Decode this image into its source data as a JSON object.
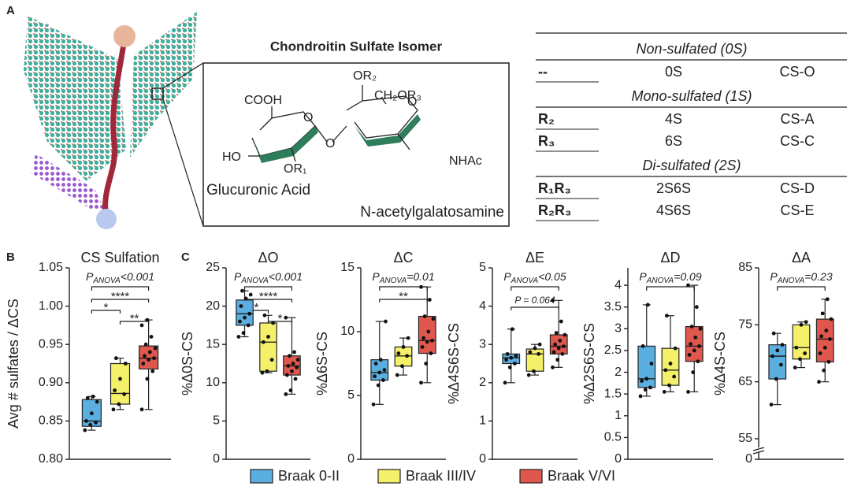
{
  "panel_labels": [
    "A",
    "B",
    "C"
  ],
  "structure": {
    "title": "Chondroitin Sulfate Isomer",
    "labels": {
      "or2": "OR₂",
      "ch2or3": "CH₂OR₃",
      "cooh": "COOH",
      "o1": "O",
      "o2": "O",
      "o3": "O",
      "ho": "HO",
      "or1": "OR₁",
      "nhac": "NHAc",
      "glc": "Glucuronic Acid",
      "galnac": "N-acetylgalatosamine"
    }
  },
  "table": {
    "sections": [
      {
        "header": "Non-sulfated (0S)",
        "rows": [
          {
            "cells": [
              "--",
              "0S",
              "CS-O"
            ],
            "color": "#3a8fb7"
          }
        ]
      },
      {
        "header": "Mono-sulfated (1S)",
        "rows": [
          {
            "cells": [
              "R₂",
              "4S",
              "CS-A"
            ],
            "color": "#1f4e8c"
          },
          {
            "cells": [
              "R₃",
              "6S",
              "CS-C"
            ],
            "color": "#d9822b"
          }
        ]
      },
      {
        "header": "Di-sulfated (2S)",
        "rows": [
          {
            "cells": [
              "R₁R₃",
              "2S6S",
              "CS-D"
            ],
            "color": "#3d6b2f"
          },
          {
            "cells": [
              "R₂R₃",
              "4S6S",
              "CS-E"
            ],
            "color": "#c0204a"
          }
        ]
      }
    ]
  },
  "chart_data": [
    {
      "type": "box",
      "title": "CS Sulfation",
      "title_color": "#222222",
      "ylabel": "Avg # sulfates / ΔCS",
      "ylim": [
        0.8,
        1.05
      ],
      "yticks": [
        {
          "value": 0.8,
          "label": "0.80"
        },
        0.85,
        {
          "value": 0.9,
          "label": "0.90"
        },
        0.95,
        {
          "value": 1.0,
          "label": "1.00"
        },
        1.05
      ],
      "anova": {
        "symbol": "P",
        "subscript": "ANOVA",
        "text": "<0.001"
      },
      "comparisons": [
        {
          "pair": [
            "Braak 0-II",
            "Braak V/VI"
          ],
          "label": "****"
        },
        {
          "pair": [
            "Braak 0-II",
            "Braak III/IV"
          ],
          "label": "*"
        },
        {
          "pair": [
            "Braak III/IV",
            "Braak V/VI"
          ],
          "label": "**"
        }
      ],
      "series": [
        {
          "name": "Braak 0-II",
          "color": "#5aaee0",
          "min": 0.838,
          "q1": 0.843,
          "median": 0.85,
          "q3": 0.878,
          "max": 0.882,
          "points": [
            0.838,
            0.845,
            0.848,
            0.85,
            0.86,
            0.875,
            0.88,
            0.882
          ]
        },
        {
          "name": "Braak III/IV",
          "color": "#f5f06a",
          "min": 0.865,
          "q1": 0.872,
          "median": 0.886,
          "q3": 0.925,
          "max": 0.932,
          "points": [
            0.865,
            0.872,
            0.885,
            0.89,
            0.905,
            0.925,
            0.932
          ]
        },
        {
          "name": "Braak V/VI",
          "color": "#e0574e",
          "min": 0.865,
          "q1": 0.918,
          "median": 0.932,
          "q3": 0.948,
          "max": 0.982,
          "points": [
            0.865,
            0.905,
            0.915,
            0.925,
            0.93,
            0.932,
            0.935,
            0.94,
            0.945,
            0.95,
            0.96,
            0.975,
            0.982
          ]
        }
      ]
    },
    {
      "type": "box",
      "title": "ΔO",
      "title_color": "#3a8fb7",
      "ylabel": "%Δ0S-CS",
      "ylim": [
        0,
        25
      ],
      "yticks": [
        0,
        5,
        10,
        15,
        20,
        25
      ],
      "anova": {
        "symbol": "P",
        "subscript": "ANOVA",
        "text": "<0.001"
      },
      "comparisons": [
        {
          "pair": [
            "Braak 0-II",
            "Braak V/VI"
          ],
          "label": "****"
        },
        {
          "pair": [
            "Braak 0-II",
            "Braak III/IV"
          ],
          "label": "*"
        },
        {
          "pair": [
            "Braak III/IV",
            "Braak V/VI"
          ],
          "label": "*"
        }
      ],
      "series": [
        {
          "name": "Braak 0-II",
          "color": "#5aaee0",
          "min": 16,
          "q1": 17.5,
          "median": 19,
          "q3": 20.8,
          "max": 22,
          "points": [
            16,
            16.5,
            17.5,
            18,
            18.5,
            19,
            20,
            21,
            21.5,
            22
          ]
        },
        {
          "name": "Braak III/IV",
          "color": "#f5f06a",
          "min": 11.3,
          "q1": 11.5,
          "median": 15.3,
          "q3": 17.8,
          "max": 18.8,
          "points": [
            11.3,
            11.5,
            13,
            15.3,
            16,
            17.8,
            18.8
          ]
        },
        {
          "name": "Braak V/VI",
          "color": "#e0574e",
          "min": 8.5,
          "q1": 11,
          "median": 12.2,
          "q3": 13.5,
          "max": 18.5,
          "points": [
            8.5,
            9,
            10.5,
            11,
            11.5,
            12,
            12.2,
            12.5,
            13,
            13.5,
            14,
            18.5
          ]
        }
      ]
    },
    {
      "type": "box",
      "title": "ΔC",
      "title_color": "#d9822b",
      "ylabel": "%Δ6S-CS",
      "ylim": [
        0,
        15
      ],
      "yticks": [
        0,
        5,
        10,
        15
      ],
      "anova": {
        "symbol": "P",
        "subscript": "ANOVA",
        "text": "=0.01"
      },
      "comparisons": [
        {
          "pair": [
            "Braak 0-II",
            "Braak V/VI"
          ],
          "label": "**"
        }
      ],
      "series": [
        {
          "name": "Braak 0-II",
          "color": "#5aaee0",
          "min": 4.3,
          "q1": 6.2,
          "median": 6.8,
          "q3": 7.8,
          "max": 10.8,
          "points": [
            4.3,
            5.8,
            6.2,
            6.5,
            6.8,
            7,
            7.5,
            7.8,
            10.8
          ]
        },
        {
          "name": "Braak III/IV",
          "color": "#f5f06a",
          "min": 6.6,
          "q1": 7.3,
          "median": 8.1,
          "q3": 8.8,
          "max": 9.5,
          "points": [
            6.6,
            7.3,
            8.1,
            8.3,
            8.8,
            9.5
          ]
        },
        {
          "name": "Braak V/VI",
          "color": "#e0574e",
          "min": 6,
          "q1": 8.3,
          "median": 9.3,
          "q3": 11.2,
          "max": 13.5,
          "points": [
            6,
            7.5,
            8.3,
            8.8,
            9.2,
            9.3,
            9.5,
            10,
            11,
            11.2,
            12.5,
            13.5
          ]
        }
      ]
    },
    {
      "type": "box",
      "title": "ΔE",
      "title_color": "#c0204a",
      "ylabel": "%Δ4S6S-CS",
      "ylim": [
        0,
        5
      ],
      "yticks": [
        0,
        1,
        2,
        3,
        4,
        5
      ],
      "anova": {
        "symbol": "P",
        "subscript": "ANOVA",
        "text": "<0.05"
      },
      "comparisons": [
        {
          "pair": [
            "Braak 0-II",
            "Braak V/VI"
          ],
          "label": "P = 0.064"
        }
      ],
      "series": [
        {
          "name": "Braak 0-II",
          "color": "#5aaee0",
          "min": 2,
          "q1": 2.5,
          "median": 2.65,
          "q3": 2.75,
          "max": 3.4,
          "points": [
            2,
            2.4,
            2.5,
            2.6,
            2.65,
            2.7,
            2.75,
            3.4
          ]
        },
        {
          "name": "Braak III/IV",
          "color": "#f5f06a",
          "min": 2.2,
          "q1": 2.3,
          "median": 2.75,
          "q3": 2.88,
          "max": 3.0,
          "points": [
            2.2,
            2.3,
            2.75,
            2.8,
            2.9,
            3.0
          ]
        },
        {
          "name": "Braak V/VI",
          "color": "#e0574e",
          "min": 2.4,
          "q1": 2.75,
          "median": 2.95,
          "q3": 3.25,
          "max": 4.15,
          "points": [
            2.4,
            2.6,
            2.75,
            2.8,
            2.9,
            2.95,
            3.0,
            3.1,
            3.25,
            3.3,
            3.6,
            4.15
          ]
        }
      ]
    },
    {
      "type": "box",
      "title": "ΔD",
      "title_color": "#3d6b2f",
      "ylabel": "%Δ2S6S-CS",
      "ylim": [
        0,
        4.4
      ],
      "yticks": [
        0,
        0.5,
        1,
        1.5,
        2,
        2.5,
        3,
        3.5,
        4
      ],
      "anova": {
        "symbol": "P",
        "subscript": "ANOVA",
        "text": "=0.09"
      },
      "comparisons": [],
      "series": [
        {
          "name": "Braak 0-II",
          "color": "#5aaee0",
          "min": 1.45,
          "q1": 1.65,
          "median": 1.85,
          "q3": 2.6,
          "max": 3.55,
          "points": [
            1.45,
            1.6,
            1.65,
            1.8,
            1.85,
            2.2,
            2.6,
            3.55
          ]
        },
        {
          "name": "Braak III/IV",
          "color": "#f5f06a",
          "min": 1.55,
          "q1": 1.7,
          "median": 2.05,
          "q3": 2.55,
          "max": 3.3,
          "points": [
            1.55,
            1.7,
            1.9,
            2.05,
            2.2,
            2.55,
            3.3
          ]
        },
        {
          "name": "Braak V/VI",
          "color": "#e0574e",
          "min": 1.55,
          "q1": 2.25,
          "median": 2.6,
          "q3": 3.05,
          "max": 4.0,
          "points": [
            1.55,
            2.0,
            2.25,
            2.4,
            2.5,
            2.6,
            2.65,
            2.8,
            3.0,
            3.05,
            3.5,
            4.0
          ]
        }
      ]
    },
    {
      "type": "box",
      "title": "ΔA",
      "title_color": "#1f4e8c",
      "ylabel": "%Δ4S-CS",
      "ylim": [
        55,
        85
      ],
      "yticks": [
        0,
        55,
        65,
        75,
        85
      ],
      "axis_break": true,
      "anova": {
        "symbol": "P",
        "subscript": "ANOVA",
        "text": "=0.23"
      },
      "comparisons": [],
      "series": [
        {
          "name": "Braak 0-II",
          "color": "#5aaee0",
          "min": 61,
          "q1": 65.5,
          "median": 69.5,
          "q3": 71.5,
          "max": 73.5,
          "points": [
            61,
            65.5,
            68,
            69.5,
            70.5,
            71.5,
            73.5
          ]
        },
        {
          "name": "Braak III/IV",
          "color": "#f5f06a",
          "min": 67.5,
          "q1": 69,
          "median": 71,
          "q3": 75,
          "max": 75.5,
          "points": [
            67.5,
            69,
            70,
            71,
            75,
            75.5
          ]
        },
        {
          "name": "Braak V/VI",
          "color": "#e0574e",
          "min": 65,
          "q1": 68.5,
          "median": 72.5,
          "q3": 76,
          "max": 79.5,
          "points": [
            65,
            67,
            68.5,
            70,
            71,
            72.5,
            73,
            74,
            76,
            77,
            79.5
          ]
        }
      ]
    }
  ]
}
